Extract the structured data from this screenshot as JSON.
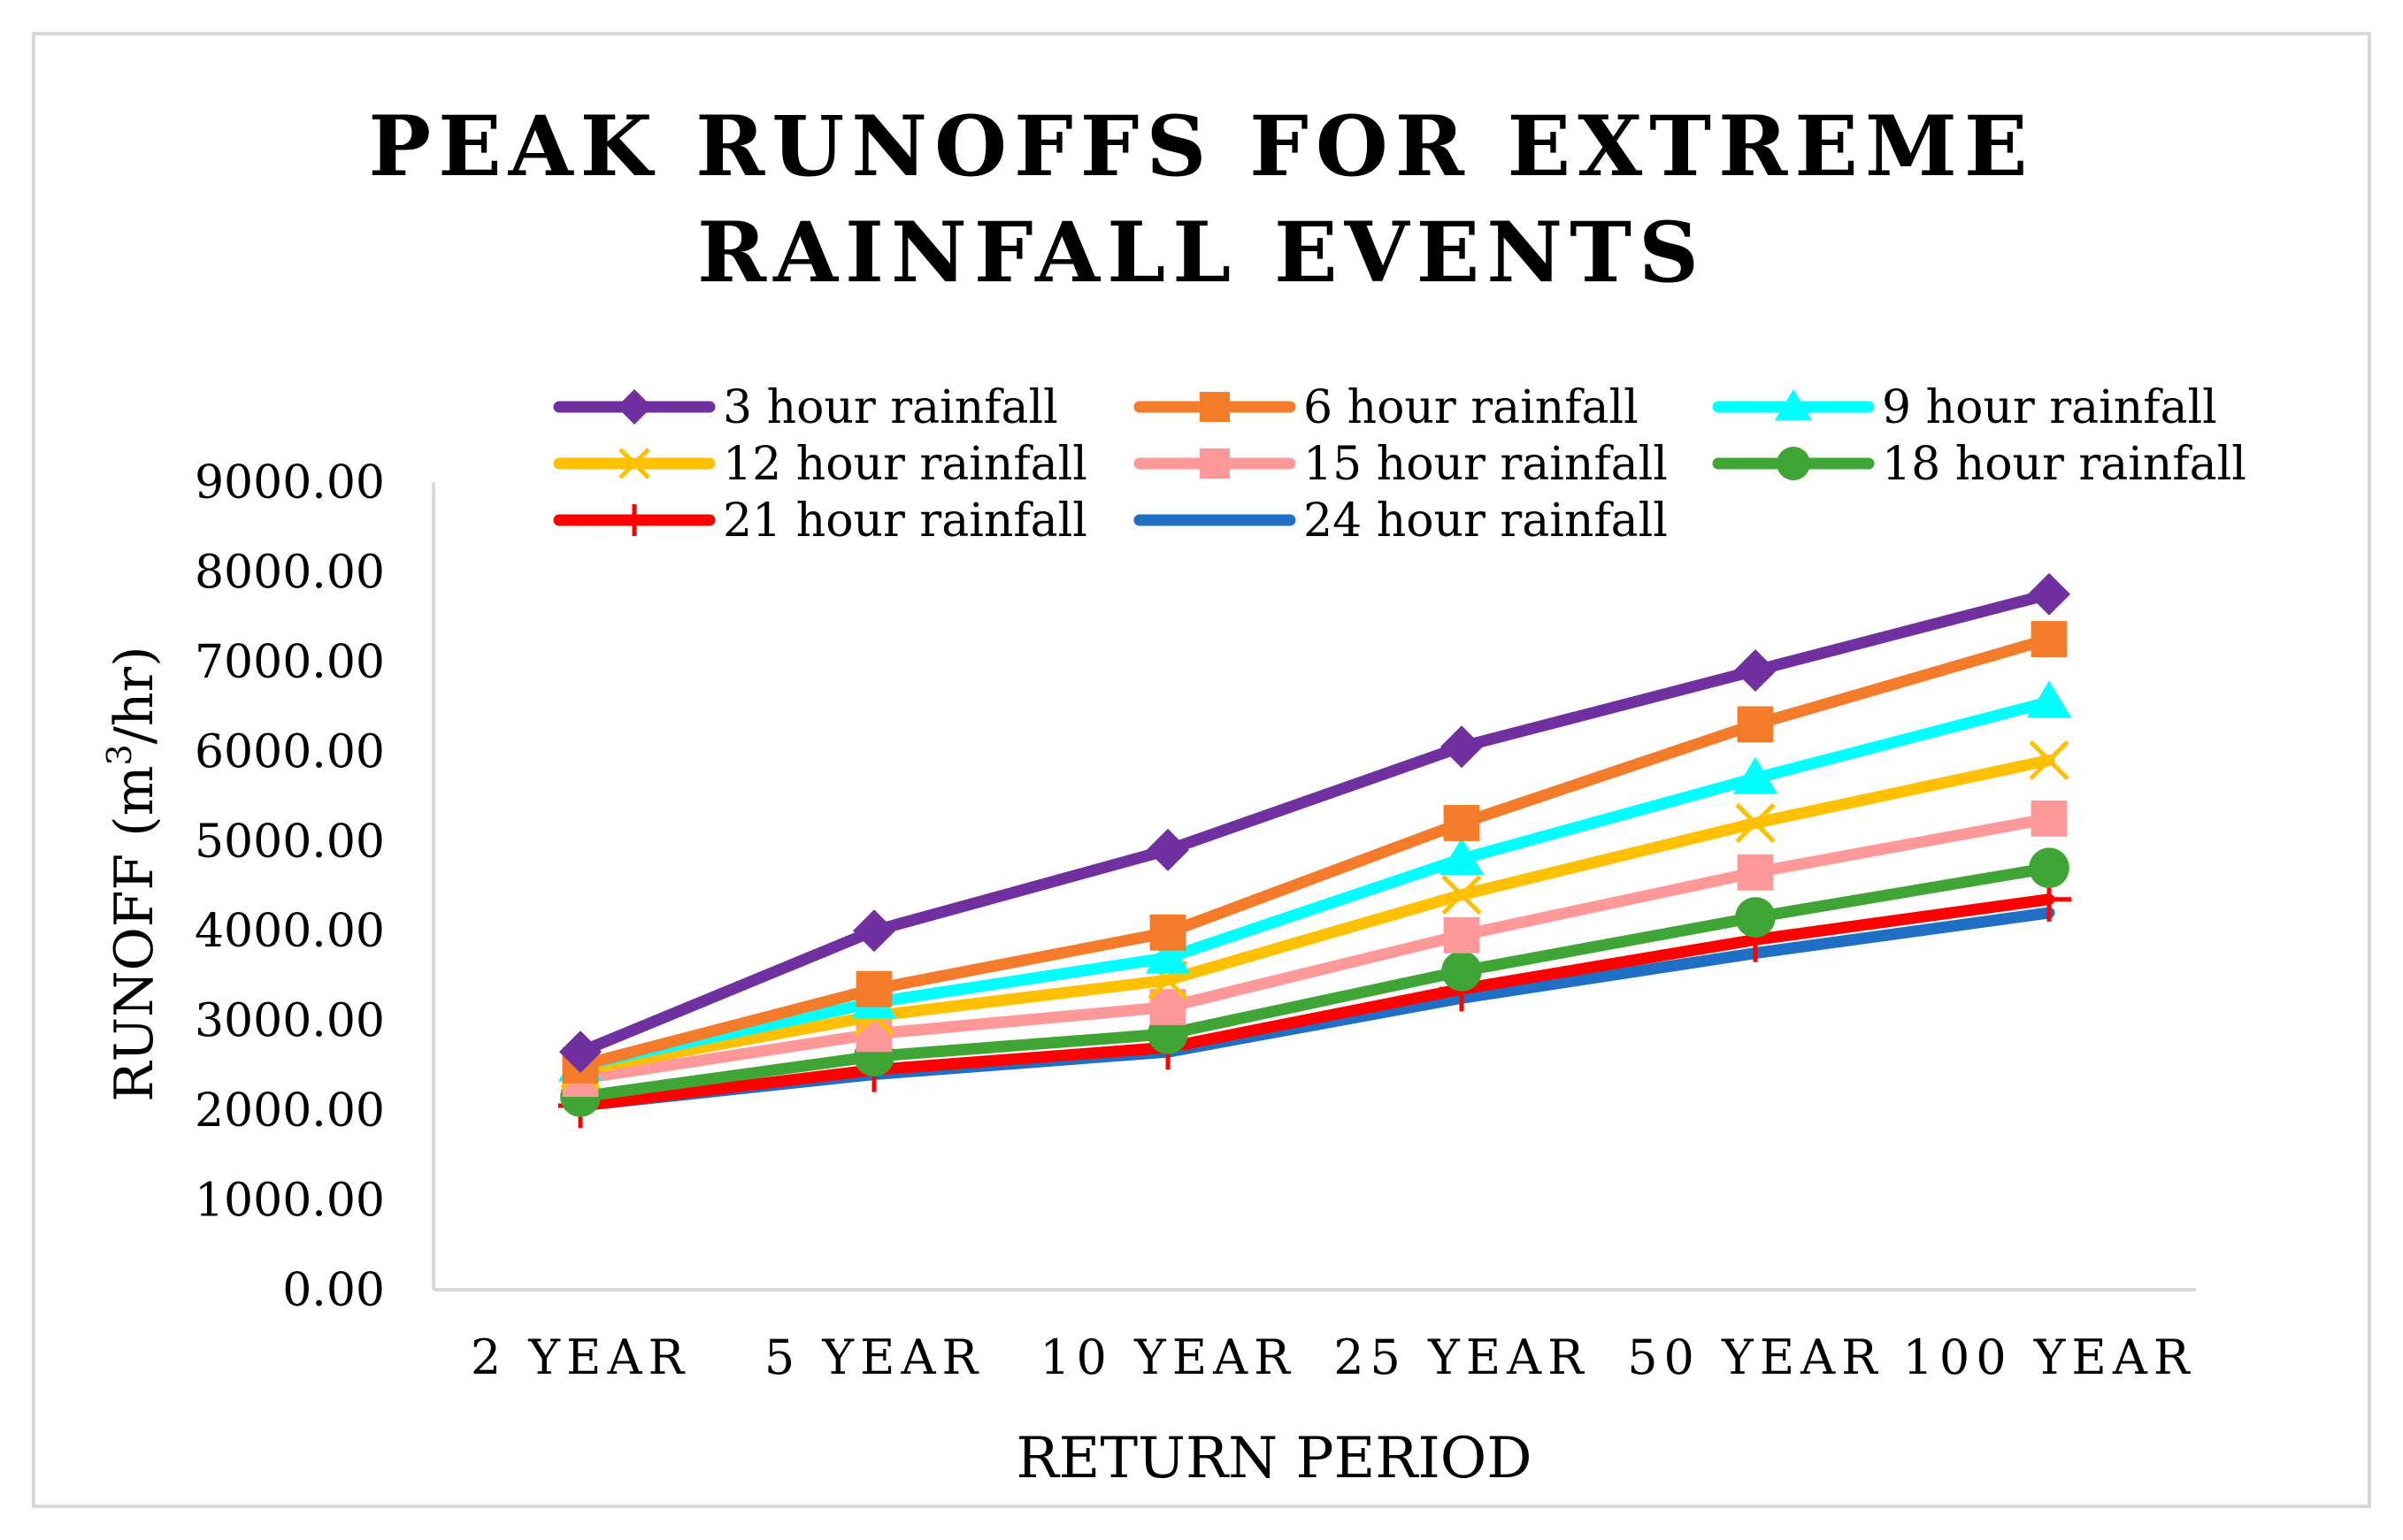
{
  "chart_data": {
    "type": "line",
    "title_lines": [
      "PEAK RUNOFFS FOR EXTREME",
      "RAINFALL EVENTS"
    ],
    "xlabel": "RETURN PERIOD",
    "ylabel_main": "RUNOFF (m",
    "ylabel_sup": "3",
    "ylabel_tail": "/hr)",
    "categories": [
      "2 YEAR",
      "5 YEAR",
      "10 YEAR",
      "25 YEAR",
      "50 YEAR",
      "100 YEAR"
    ],
    "ylim": [
      0,
      9000
    ],
    "yticks": [
      "0.00",
      "1000.00",
      "2000.00",
      "3000.00",
      "4000.00",
      "5000.00",
      "6000.00",
      "7000.00",
      "8000.00",
      "9000.00"
    ],
    "grid": false,
    "legend_position": "top",
    "series": [
      {
        "name": "3 hour rainfall",
        "color": "#7030A0",
        "marker": "diamond",
        "values": [
          2650,
          4000,
          4900,
          6050,
          6900,
          7750
        ]
      },
      {
        "name": "6 hour rainfall",
        "color": "#F47B2A",
        "marker": "square",
        "values": [
          2500,
          3350,
          3980,
          5200,
          6300,
          7250
        ]
      },
      {
        "name": "9 hour rainfall",
        "color": "#00FFFF",
        "marker": "triangle",
        "values": [
          2500,
          3200,
          3700,
          4800,
          5700,
          6550
        ]
      },
      {
        "name": "12 hour rainfall",
        "color": "#FFC000",
        "marker": "x",
        "values": [
          2450,
          3050,
          3450,
          4400,
          5200,
          5900
        ]
      },
      {
        "name": "15 hour rainfall",
        "color": "#FF9999",
        "marker": "square",
        "values": [
          2350,
          2850,
          3150,
          3950,
          4650,
          5250
        ]
      },
      {
        "name": "18 hour rainfall",
        "color": "#3FA535",
        "marker": "circle",
        "values": [
          2150,
          2600,
          2850,
          3550,
          4150,
          4700
        ]
      },
      {
        "name": "21 hour rainfall",
        "color": "#FF0000",
        "marker": "plus",
        "values": [
          2050,
          2450,
          2700,
          3350,
          3900,
          4350
        ]
      },
      {
        "name": "24 hour rainfall",
        "color": "#1F6FC5",
        "marker": "none",
        "values": [
          2050,
          2400,
          2650,
          3250,
          3750,
          4200
        ]
      }
    ]
  }
}
